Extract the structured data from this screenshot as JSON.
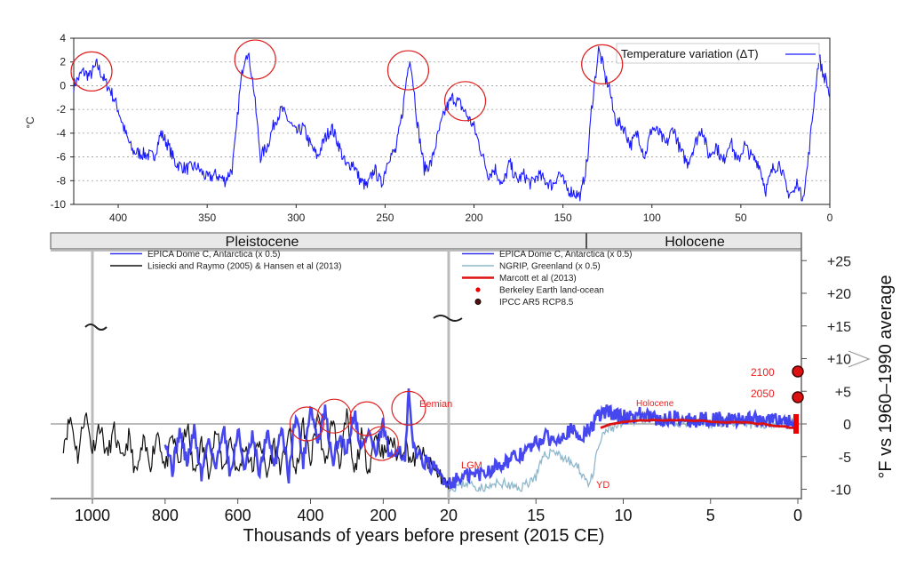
{
  "chart_data": [
    {
      "type": "line",
      "title": "",
      "ylabel": "°C",
      "xlabel": "",
      "xlim": [
        425,
        0
      ],
      "ylim": [
        -10,
        4
      ],
      "x_ticks": [
        400,
        350,
        300,
        250,
        200,
        150,
        100,
        50,
        0
      ],
      "y_ticks": [
        4,
        2,
        0,
        -2,
        -4,
        -6,
        -8,
        -10
      ],
      "grid": "dotted horizontal",
      "legend": "top-right",
      "series": [
        {
          "name": "Temperature variation (ΔT)",
          "color": "#1a1aff",
          "x": [
            425,
            420,
            416,
            412,
            408,
            404,
            400,
            396,
            392,
            388,
            384,
            380,
            376,
            372,
            368,
            362,
            356,
            350,
            345,
            340,
            336,
            334,
            332,
            330,
            328,
            326,
            324,
            322,
            320,
            316,
            312,
            308,
            304,
            300,
            296,
            292,
            288,
            284,
            280,
            276,
            272,
            268,
            264,
            260,
            256,
            252,
            248,
            244,
            240,
            238,
            236,
            234,
            232,
            228,
            224,
            220,
            216,
            212,
            208,
            204,
            200,
            196,
            192,
            188,
            184,
            180,
            176,
            172,
            168,
            164,
            160,
            156,
            152,
            148,
            144,
            140,
            136,
            134,
            132,
            130,
            128,
            126,
            124,
            122,
            120,
            116,
            112,
            108,
            104,
            100,
            96,
            92,
            88,
            84,
            80,
            76,
            72,
            68,
            64,
            60,
            56,
            52,
            48,
            44,
            40,
            36,
            32,
            28,
            24,
            20,
            18,
            16,
            14,
            12,
            10,
            8,
            6,
            4,
            2,
            0
          ],
          "y": [
            0,
            1.2,
            0.8,
            1.8,
            0.5,
            -0.5,
            -2,
            -4,
            -5.5,
            -5.7,
            -5.8,
            -6,
            -4,
            -5,
            -6.5,
            -7,
            -6.8,
            -7.8,
            -7.5,
            -8,
            -7,
            -4.5,
            -1,
            1.5,
            3,
            2,
            0,
            -3,
            -6,
            -5,
            -3,
            -2,
            -3,
            -4,
            -3.5,
            -5,
            -6,
            -4.5,
            -3.5,
            -5,
            -6.8,
            -6.5,
            -8,
            -8.5,
            -7,
            -8.3,
            -6,
            -5.5,
            -2,
            0.5,
            2.5,
            0,
            -3,
            -7,
            -6.5,
            -4,
            -2,
            -1,
            -1.5,
            -2.5,
            -3.5,
            -5.5,
            -7.5,
            -7,
            -8.5,
            -6.5,
            -8,
            -7.5,
            -8.3,
            -7.5,
            -8,
            -8.4,
            -7.3,
            -8.7,
            -9,
            -9.3,
            -6,
            -2,
            0.5,
            3,
            2,
            0.5,
            0,
            -2,
            -3,
            -3.5,
            -5,
            -4,
            -6,
            -3.5,
            -4,
            -5,
            -3.5,
            -5.5,
            -6.5,
            -5,
            -3.5,
            -6,
            -5,
            -6.5,
            -4.5,
            -6.5,
            -5,
            -6,
            -6.5,
            -8.8,
            -7,
            -6.5,
            -9,
            -9,
            -8,
            -9.5,
            -8.5,
            -6,
            -3,
            0,
            2.5,
            1,
            0.5,
            -1
          ]
        }
      ],
      "annotations": [
        "red circles mark interglacial peaks near 415, 323, 237, 205 and 128 kyr"
      ]
    },
    {
      "type": "line",
      "title": "",
      "xlabel": "Thousands of years before present (2015 CE)",
      "ylabel": "°F vs 1960–1990 average",
      "x_tick_labels": [
        "1000",
        "800",
        "600",
        "400",
        "200",
        "20",
        "15",
        "10",
        "5",
        "0"
      ],
      "y_tick_labels": [
        "+25",
        "+20",
        "+15",
        "+10",
        "+5",
        "0",
        "-5",
        "-10"
      ],
      "ylim": [
        -10,
        27
      ],
      "axis_note": "x axis is piecewise: 1000–20 kyr compressed on the left, 20–0 kyr expanded on the right; break marks at 1000 and 20",
      "periods": [
        "Pleistocene",
        "Holocene"
      ],
      "legend_left": [
        {
          "label": "EPICA Dome C, Antarctica (x 0.5)",
          "color": "#3333ee"
        },
        {
          "label": "Lisiecki and Raymo (2005) & Hansen et al (2013)",
          "color": "#111111"
        }
      ],
      "legend_right": [
        {
          "label": "EPICA Dome C, Antarctica (x 0.5)",
          "color": "#3333ee"
        },
        {
          "label": "NGRIP, Greenland (x 0.5)",
          "color": "#8fb8cc"
        },
        {
          "label": "Marcott et al (2013)",
          "color": "#dd1111"
        },
        {
          "label": "Berkeley Earth land-ocean",
          "color": "#ee0000"
        },
        {
          "label": "IPCC AR5 RCP8.5",
          "color": "#551111"
        }
      ],
      "annotations": [
        "Eemian",
        "LGM",
        "YD",
        "Holocene",
        "2100",
        "2050"
      ],
      "projections": [
        {
          "label": "2100",
          "value": 8
        },
        {
          "label": "2050",
          "value": 4
        }
      ],
      "series": [
        {
          "name": "Lisiecki and Raymo (2005) & Hansen et al (2013)",
          "color": "#111111",
          "x": [
            1080,
            1060,
            1040,
            1020,
            1000,
            980,
            960,
            940,
            920,
            900,
            880,
            860,
            840,
            820,
            800,
            780,
            760,
            740,
            720,
            700,
            680,
            660,
            640,
            620,
            600,
            580,
            560,
            540,
            520,
            500,
            480,
            460,
            440,
            420,
            400,
            380,
            360,
            340,
            320,
            300,
            280,
            260,
            240,
            220,
            200,
            180,
            160,
            140,
            120,
            100,
            80,
            60,
            40,
            20
          ],
          "y": [
            -3,
            1,
            -5,
            2,
            -4,
            0,
            -5,
            -1,
            -6,
            -2,
            -8,
            -3,
            -6,
            -1,
            -7,
            -2,
            -6,
            0,
            -8,
            -3,
            -7,
            -1,
            -7,
            -2,
            -8,
            -3,
            -7,
            -2,
            -8,
            -3,
            -7,
            -1,
            -8,
            0,
            -6,
            2,
            -7,
            1,
            -6,
            1,
            -8,
            -2,
            -7,
            -1,
            -5,
            -2,
            -5,
            -3,
            -6,
            -4,
            -6,
            -7,
            -8,
            -10
          ]
        },
        {
          "name": "EPICA Dome C, Antarctica (x 0.5)",
          "color": "#3333ee",
          "x": [
            800,
            780,
            760,
            740,
            720,
            700,
            680,
            660,
            640,
            620,
            600,
            580,
            560,
            540,
            520,
            500,
            480,
            460,
            440,
            420,
            400,
            380,
            360,
            340,
            320,
            300,
            280,
            260,
            240,
            220,
            200,
            180,
            160,
            140,
            130,
            120,
            100,
            80,
            60,
            40,
            20,
            19,
            18,
            17,
            16,
            15,
            14.5,
            14,
            13.5,
            13,
            12.5,
            12,
            11.7,
            11.5,
            11,
            10.5,
            10,
            9,
            8,
            7,
            6,
            5,
            4,
            3,
            2,
            1,
            0.5,
            0
          ],
          "y": [
            -2,
            -7,
            -1,
            -6,
            -1,
            -8,
            -2,
            -7,
            0,
            -8,
            -1,
            -7,
            -2,
            -8,
            -1,
            -7,
            0,
            -8,
            2,
            -6,
            3,
            -3,
            2,
            -6,
            -2,
            -4,
            2,
            -4,
            -1,
            -5,
            0,
            -6,
            -3,
            -6,
            5,
            -3,
            -5,
            -6,
            -7,
            -8,
            -9,
            -8,
            -7.5,
            -6,
            -5,
            -3,
            -2,
            -2.5,
            -1.5,
            -1,
            -2,
            -1,
            0,
            1,
            2,
            1.5,
            1,
            1.5,
            0.5,
            1,
            0.5,
            0.8,
            0.5,
            1,
            0.3,
            0.8,
            0.2,
            0.5
          ]
        },
        {
          "name": "NGRIP, Greenland (x 0.5)",
          "color": "#8fb8cc",
          "x": [
            20,
            19,
            18,
            17,
            16,
            15,
            14.7,
            14.5,
            14,
            13.5,
            13,
            12.5,
            12,
            11.7,
            11.5,
            11,
            10,
            9,
            8,
            7,
            6,
            5,
            4,
            3,
            2,
            1,
            0
          ],
          "y": [
            -10,
            -9,
            -10,
            -9,
            -10,
            -8,
            -6,
            -5,
            -4,
            -5,
            -6,
            -7,
            -9,
            -8,
            -4,
            -1,
            0,
            1,
            0.5,
            0,
            0.5,
            0,
            0.5,
            0,
            0,
            0.5,
            0
          ]
        },
        {
          "name": "Marcott et al (2013)",
          "color": "#dd1111",
          "x": [
            11.3,
            10.5,
            10,
            9,
            8,
            7,
            6,
            5,
            4,
            3,
            2,
            1,
            0.2
          ],
          "y": [
            -0.5,
            0,
            0.2,
            0.5,
            0.6,
            0.6,
            0.5,
            0.4,
            0.3,
            0.2,
            0,
            -0.4,
            -0.6
          ]
        }
      ]
    }
  ]
}
